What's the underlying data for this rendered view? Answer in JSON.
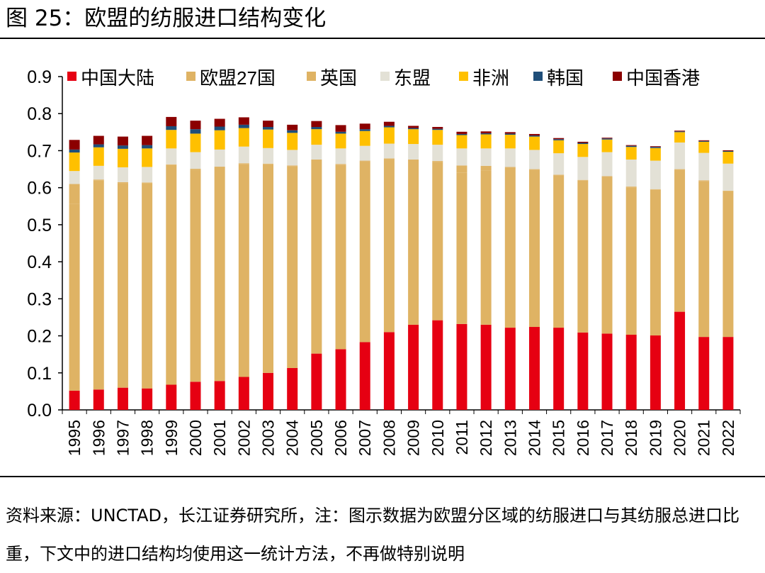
{
  "figure": {
    "title": "图 25：欧盟的纺服进口结构变化",
    "source": "资料来源：UNCTAD，长江证券研究所，注：图示数据为欧盟分区域的纺服进口与其纺服总进口比重，下文中的进口结构均使用这一统计方法，不再做特别说明"
  },
  "chart_data": {
    "type": "bar",
    "stacked": true,
    "legend_position": "top",
    "grid": false,
    "ylim": [
      0,
      0.9
    ],
    "yticks": [
      "0.0",
      "0.1",
      "0.2",
      "0.3",
      "0.4",
      "0.5",
      "0.6",
      "0.7",
      "0.8",
      "0.9"
    ],
    "categories": [
      "1995",
      "1996",
      "1997",
      "1998",
      "1999",
      "2000",
      "2001",
      "2002",
      "2003",
      "2004",
      "2005",
      "2006",
      "2007",
      "2008",
      "2009",
      "2010",
      "2011",
      "2012",
      "2013",
      "2014",
      "2015",
      "2016",
      "2017",
      "2018",
      "2019",
      "2020",
      "2021",
      "2022"
    ],
    "series": [
      {
        "name": "中国大陆",
        "color": "#E60012",
        "values": [
          0.052,
          0.055,
          0.06,
          0.058,
          0.068,
          0.076,
          0.078,
          0.089,
          0.1,
          0.113,
          0.152,
          0.164,
          0.183,
          0.21,
          0.23,
          0.242,
          0.232,
          0.23,
          0.222,
          0.224,
          0.222,
          0.209,
          0.206,
          0.203,
          0.201,
          0.265,
          0.197,
          0.197
        ]
      },
      {
        "name": "欧盟27国",
        "color": "#DFB364",
        "values": [
          0.504,
          0.565,
          0.552,
          0.554,
          0.593,
          0.573,
          0.577,
          0.575,
          0.563,
          0.545,
          0.522,
          0.498,
          0.488,
          0.467,
          0.444,
          0.428,
          0.409,
          0.416,
          0.432,
          0.424,
          0.411,
          0.41,
          0.423,
          0.398,
          0.393,
          0.383,
          0.421,
          0.393
        ]
      },
      {
        "name": "英国",
        "color": "#DFB364",
        "values": [
          0.054,
          0.002,
          0.003,
          0.002,
          0.002,
          0.002,
          0.002,
          0.002,
          0.002,
          0.002,
          0.002,
          0.002,
          0.002,
          0.002,
          0.002,
          0.002,
          0.019,
          0.013,
          0.002,
          0.002,
          0.002,
          0.002,
          0.002,
          0.002,
          0.002,
          0.002,
          0.002,
          0.002
        ]
      },
      {
        "name": "东盟",
        "color": "#E3E1D6",
        "values": [
          0.035,
          0.037,
          0.04,
          0.042,
          0.043,
          0.045,
          0.046,
          0.045,
          0.042,
          0.042,
          0.04,
          0.042,
          0.04,
          0.04,
          0.042,
          0.044,
          0.046,
          0.047,
          0.05,
          0.052,
          0.058,
          0.062,
          0.065,
          0.073,
          0.077,
          0.072,
          0.074,
          0.073
        ]
      },
      {
        "name": "非洲",
        "color": "#FFC000",
        "values": [
          0.05,
          0.05,
          0.05,
          0.05,
          0.05,
          0.05,
          0.052,
          0.05,
          0.05,
          0.046,
          0.042,
          0.04,
          0.04,
          0.044,
          0.04,
          0.04,
          0.036,
          0.038,
          0.037,
          0.036,
          0.035,
          0.035,
          0.034,
          0.034,
          0.034,
          0.028,
          0.03,
          0.032
        ]
      },
      {
        "name": "韩国",
        "color": "#1F4E79",
        "values": [
          0.008,
          0.008,
          0.009,
          0.009,
          0.01,
          0.012,
          0.01,
          0.009,
          0.007,
          0.007,
          0.006,
          0.005,
          0.005,
          0.004,
          0.003,
          0.003,
          0.003,
          0.003,
          0.003,
          0.003,
          0.003,
          0.003,
          0.003,
          0.003,
          0.003,
          0.002,
          0.002,
          0.002
        ]
      },
      {
        "name": "中国香港",
        "color": "#8B0000",
        "values": [
          0.026,
          0.023,
          0.024,
          0.025,
          0.025,
          0.023,
          0.021,
          0.02,
          0.017,
          0.015,
          0.016,
          0.018,
          0.015,
          0.011,
          0.006,
          0.005,
          0.006,
          0.005,
          0.004,
          0.004,
          0.003,
          0.003,
          0.002,
          0.002,
          0.002,
          0.002,
          0.002,
          0.002
        ]
      }
    ]
  }
}
